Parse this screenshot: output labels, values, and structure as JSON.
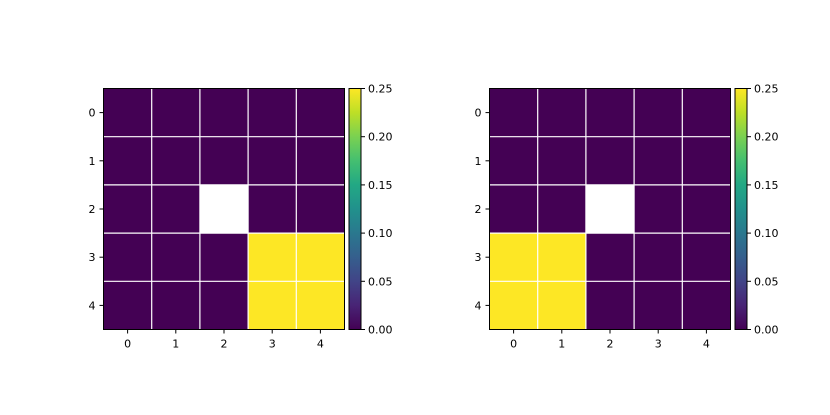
{
  "chart_data": [
    {
      "type": "heatmap",
      "title": "",
      "xlabel": "",
      "ylabel": "",
      "x_ticks": [
        "0",
        "1",
        "2",
        "3",
        "4"
      ],
      "y_ticks": [
        "0",
        "1",
        "2",
        "3",
        "4"
      ],
      "grid": true,
      "grid_color": "#ffffff",
      "colormap": "viridis",
      "masked_color": "#ffffff",
      "values": [
        [
          0,
          0,
          0,
          0,
          0
        ],
        [
          0,
          0,
          0,
          0,
          0
        ],
        [
          0,
          0,
          null,
          0,
          0
        ],
        [
          0,
          0,
          0,
          0.25,
          0.25
        ],
        [
          0,
          0,
          0,
          0.25,
          0.25
        ]
      ],
      "colorbar": {
        "range": [
          0,
          0.25
        ],
        "ticks": [
          "0.00",
          "0.05",
          "0.10",
          "0.15",
          "0.20",
          "0.25"
        ],
        "tick_values": [
          0,
          0.05,
          0.1,
          0.15,
          0.2,
          0.25
        ]
      }
    },
    {
      "type": "heatmap",
      "title": "",
      "xlabel": "",
      "ylabel": "",
      "x_ticks": [
        "0",
        "1",
        "2",
        "3",
        "4"
      ],
      "y_ticks": [
        "0",
        "1",
        "2",
        "3",
        "4"
      ],
      "grid": true,
      "grid_color": "#ffffff",
      "colormap": "viridis",
      "masked_color": "#ffffff",
      "values": [
        [
          0,
          0,
          0,
          0,
          0
        ],
        [
          0,
          0,
          0,
          0,
          0
        ],
        [
          0,
          0,
          null,
          0,
          0
        ],
        [
          0.25,
          0.25,
          0,
          0,
          0
        ],
        [
          0.25,
          0.25,
          0,
          0,
          0
        ]
      ],
      "colorbar": {
        "range": [
          0,
          0.25
        ],
        "ticks": [
          "0.00",
          "0.05",
          "0.10",
          "0.15",
          "0.20",
          "0.25"
        ],
        "tick_values": [
          0,
          0.05,
          0.1,
          0.15,
          0.2,
          0.25
        ]
      }
    }
  ]
}
